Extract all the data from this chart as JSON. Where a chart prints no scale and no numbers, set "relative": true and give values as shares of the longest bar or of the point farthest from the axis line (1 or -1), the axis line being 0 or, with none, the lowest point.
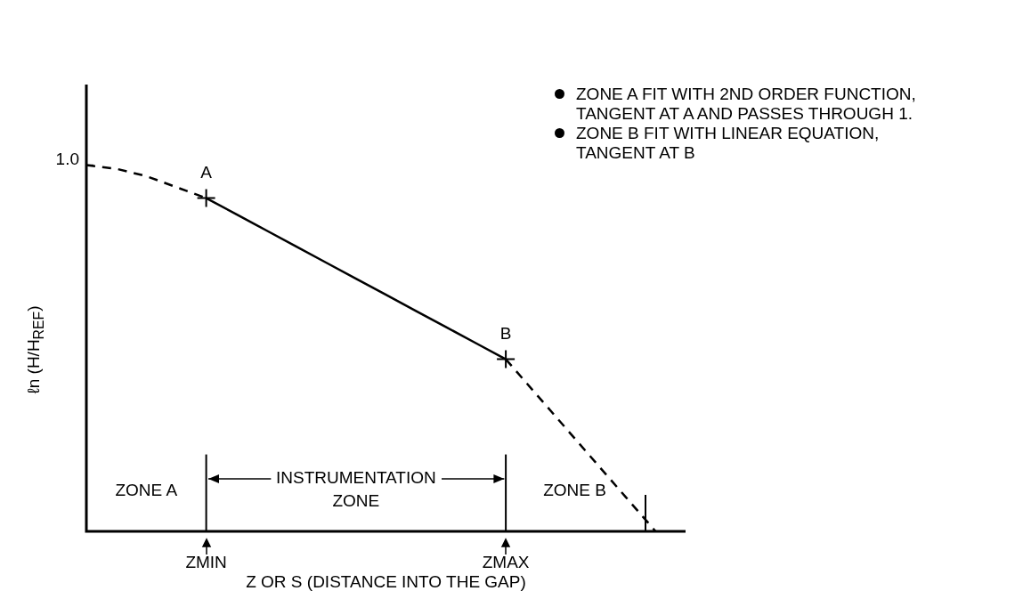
{
  "chart_data": {
    "type": "line",
    "relative": true,
    "xlabel": "Z OR S (DISTANCE INTO THE GAP)",
    "ylabel": "ℓn (H/H$_{REF}$)",
    "categories": [
      null,
      null,
      null,
      null,
      "ZMIN",
      null,
      null,
      null,
      null,
      null,
      null,
      null,
      null,
      null,
      "ZMAX",
      null,
      null,
      null,
      null,
      null,
      null
    ],
    "series": [
      {
        "color": "#000000",
        "line_style": "dashed",
        "values": [
          1,
          0.99,
          0.97,
          0.94,
          0.91,
          null,
          null,
          null,
          null,
          null,
          null,
          null,
          null,
          null,
          null,
          null,
          null,
          null,
          null,
          null,
          null
        ]
      },
      {
        "color": "#000000",
        "line_style": "solid",
        "values": [
          null,
          null,
          null,
          null,
          0.91,
          0.866,
          0.822,
          0.778,
          0.734,
          0.69,
          0.646,
          0.602,
          0.558,
          0.514,
          0.47,
          null,
          null,
          null,
          null,
          null,
          null
        ]
      },
      {
        "color": "#000000",
        "line_style": "dashed",
        "values": [
          null,
          null,
          null,
          null,
          null,
          null,
          null,
          null,
          null,
          null,
          null,
          null,
          null,
          null,
          0.47,
          0.376,
          0.282,
          0.188,
          0.094,
          0,
          null
        ]
      },
      {
        "type": "scatter",
        "color": "#000000",
        "marker": "cross",
        "values": [
          null,
          null,
          null,
          null,
          0.91,
          null,
          null,
          null,
          null,
          null,
          null,
          null,
          null,
          null,
          0.47,
          null,
          null,
          null,
          null,
          null,
          null
        ]
      }
    ],
    "ref_lines": [
      {
        "axis": "x",
        "value": "ZMIN",
        "color": "#000000"
      },
      {
        "axis": "x",
        "value": "ZMAX",
        "color": "#000000"
      }
    ],
    "annotations": [
      "1.0",
      "ZONE A",
      "INSTRUMENTATION ZONE",
      "ZONE B",
      {
        "text": "A",
        "x": "ZMIN",
        "y": 0.91
      },
      {
        "text": "B",
        "x": "ZMAX",
        "y": 0.47
      },
      "ZONE A FIT WITH 2ND ORDER FUNCTION, TANGENT AT A AND PASSES THROUGH 1.",
      "ZONE B FIT WITH LINEAR EQUATION, TANGENT AT B"
    ],
    "legend": false
  }
}
